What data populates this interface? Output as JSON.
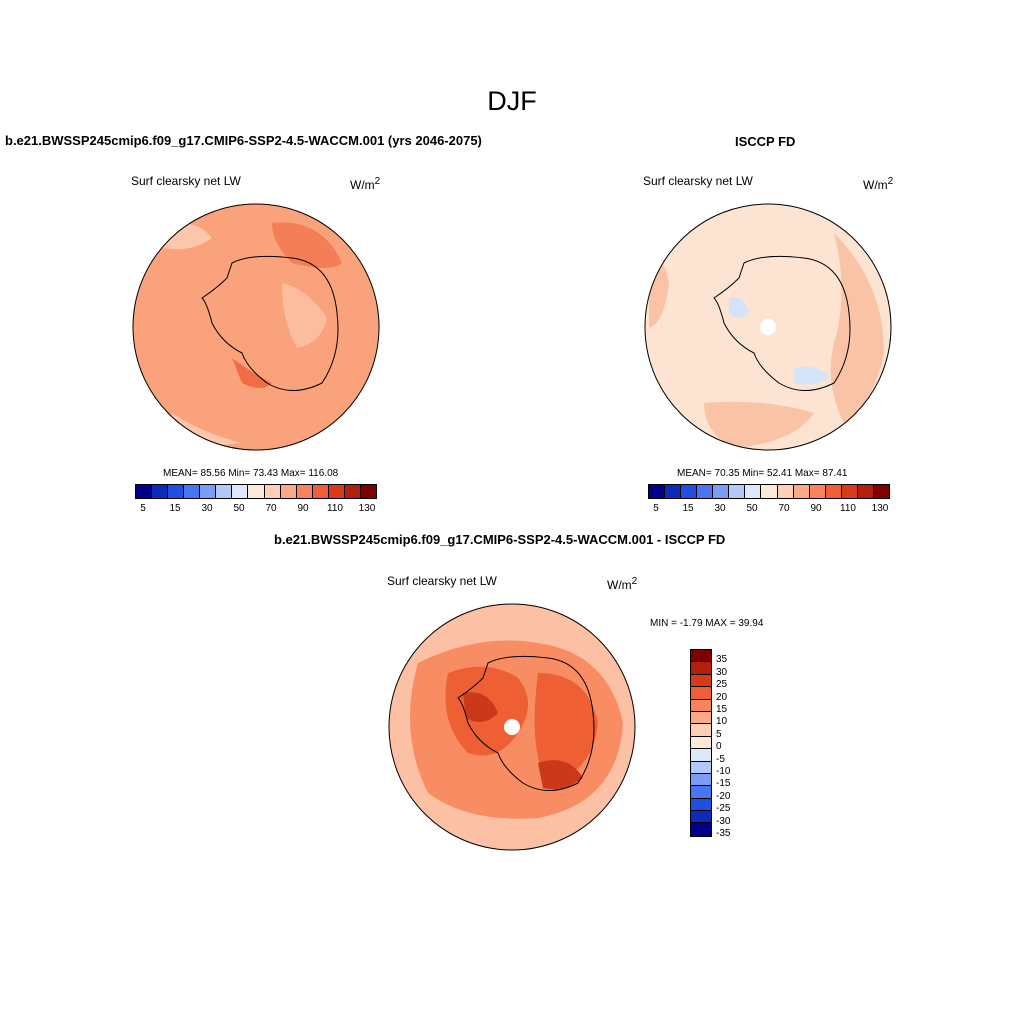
{
  "page_title": "DJF",
  "panels": [
    {
      "title": "b.e21.BWSSP245cmip6.f09_g17.CMIP6-SSP2-4.5-WACCM.001 (yrs 2046-2075)",
      "variable": "Surf clearsky net LW",
      "unit": "W/m",
      "unit_sup": "2",
      "stats": "MEAN=  85.56  Min=  73.43  Max= 116.08"
    },
    {
      "title": "ISCCP FD",
      "variable": "Surf clearsky net LW",
      "unit": "W/m",
      "unit_sup": "2",
      "stats": "MEAN=  70.35  Min=  52.41  Max=  87.41"
    },
    {
      "title": "b.e21.BWSSP245cmip6.f09_g17.CMIP6-SSP2-4.5-WACCM.001 - ISCCP FD",
      "variable": "Surf clearsky net LW",
      "unit": "W/m",
      "unit_sup": "2",
      "stats": "MIN =  -1.79 MAX =  39.94"
    }
  ],
  "colorbar_abs": {
    "colors": [
      "#00008b",
      "#0b2bb8",
      "#1f4fe0",
      "#4876f0",
      "#7a9cf5",
      "#b2c8f8",
      "#dde8fb",
      "#fde9d9",
      "#fccfb6",
      "#fbaa88",
      "#f7845d",
      "#ef5e34",
      "#d93a1a",
      "#b31f0e",
      "#7f0000"
    ],
    "labels": [
      "5",
      "15",
      "30",
      "50",
      "70",
      "90",
      "110",
      "130"
    ]
  },
  "colorbar_diff": {
    "colors": [
      "#7f0000",
      "#b31f0e",
      "#d93a1a",
      "#ef5e34",
      "#f7845d",
      "#fbaa88",
      "#fccfb6",
      "#fde9d9",
      "#dde8fb",
      "#b2c8f8",
      "#7a9cf5",
      "#4876f0",
      "#1f4fe0",
      "#0b2bb8",
      "#00008b"
    ],
    "labels": [
      "35",
      "30",
      "25",
      "20",
      "15",
      "10",
      "5",
      "0",
      "-5",
      "-10",
      "-15",
      "-20",
      "-25",
      "-30",
      "-35"
    ]
  },
  "map_colors": {
    "bg_model": "#f9a27c",
    "light_model": "#fcc7aa",
    "dark_model": "#f47f57",
    "bg_obs": "#fde3d2",
    "mid_obs": "#fbc3a6",
    "blue_obs": "#d4e3f7",
    "bg_diff": "#fcc1a4",
    "mid_diff": "#f88c62",
    "dark_diff": "#ee5f33",
    "darkest_diff": "#c9391a"
  }
}
